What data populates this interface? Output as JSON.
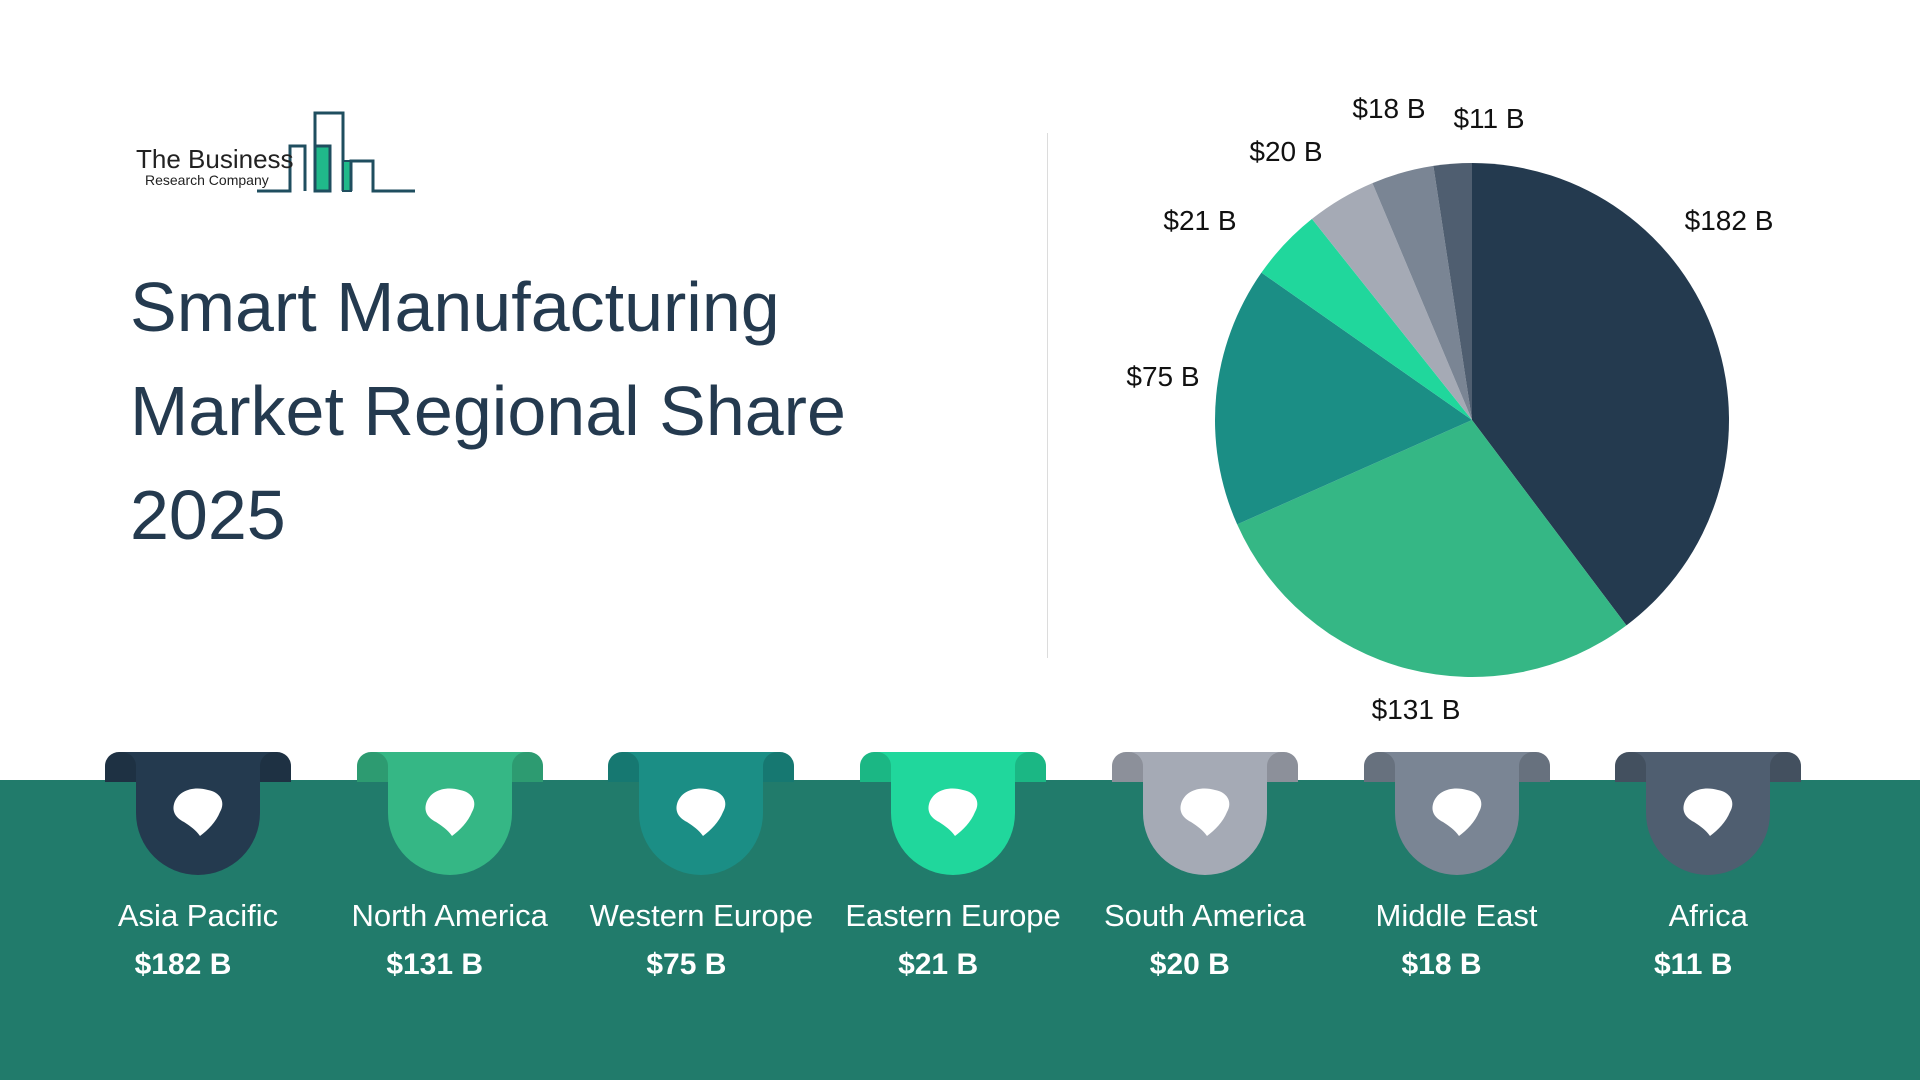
{
  "logo": {
    "line1": "The Business",
    "line2": "Research Company"
  },
  "title": {
    "line1": "Smart Manufacturing",
    "line2": "Market Regional Share",
    "line3": "2025"
  },
  "chart_data": {
    "type": "pie",
    "start": "12 o'clock, clockwise",
    "categories": [
      "Asia Pacific",
      "North America",
      "Western Europe",
      "Eastern Europe",
      "South America",
      "Middle East",
      "Africa"
    ],
    "values": [
      182,
      131,
      75,
      21,
      20,
      18,
      11
    ],
    "data_labels": [
      "$182 B",
      "$131 B",
      "$75 B",
      "$21 B",
      "$20 B",
      "$18 B",
      "$11 B"
    ],
    "colors": [
      "#243a4f",
      "#35b785",
      "#1b8e85",
      "#20d79c",
      "#a5aab5",
      "#7a8594",
      "#4f5e70"
    ],
    "unit": "USD billions"
  },
  "regions": [
    {
      "name": "Asia Pacific",
      "value": "$182 B",
      "icon": "asia-map-icon",
      "color": "#243a4f"
    },
    {
      "name": "North America",
      "value": "$131 B",
      "icon": "north-america-map-icon",
      "color": "#35b785"
    },
    {
      "name": "Western Europe",
      "value": "$75 B",
      "icon": "western-europe-map-icon",
      "color": "#1b8e85"
    },
    {
      "name": "Eastern Europe",
      "value": "$21 B",
      "icon": "eastern-europe-map-icon",
      "color": "#20d79c"
    },
    {
      "name": "South America",
      "value": "$20 B",
      "icon": "south-america-map-icon",
      "color": "#a5aab5"
    },
    {
      "name": "Middle East",
      "value": "$18 B",
      "icon": "middle-east-map-icon",
      "color": "#7a8594"
    },
    {
      "name": "Africa",
      "value": "$11 B",
      "icon": "africa-map-icon",
      "color": "#4f5e70"
    }
  ],
  "colors": {
    "band": "#217b6b",
    "title": "#243a4f"
  }
}
